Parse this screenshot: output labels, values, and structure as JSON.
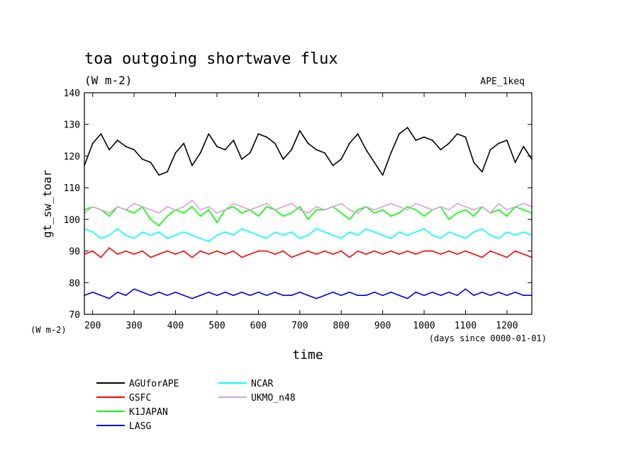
{
  "chart_data": {
    "type": "line",
    "title": "toa outgoing shortwave flux",
    "subtitle": "(W m-2)",
    "tag": "APE_1keq",
    "ylabel": "gt_sw_toar",
    "yunit": "(W m-2)",
    "xlabel": "time",
    "xunit": "(days since 0000-01-01)",
    "xlim": [
      180,
      1260
    ],
    "ylim": [
      70,
      140
    ],
    "xticks": [
      200,
      300,
      400,
      500,
      600,
      700,
      800,
      900,
      1000,
      1100,
      1200
    ],
    "yticks": [
      70,
      80,
      90,
      100,
      110,
      120,
      130,
      140
    ],
    "grid": false,
    "legend_position": "bottom-left",
    "series": [
      {
        "name": "AGUforAPE",
        "color": "#000000",
        "x": [
          180,
          200,
          220,
          240,
          260,
          280,
          300,
          320,
          340,
          360,
          380,
          400,
          420,
          440,
          460,
          480,
          500,
          520,
          540,
          560,
          580,
          600,
          620,
          640,
          660,
          680,
          700,
          720,
          740,
          760,
          780,
          800,
          820,
          840,
          860,
          880,
          900,
          920,
          940,
          960,
          980,
          1000,
          1020,
          1040,
          1060,
          1080,
          1100,
          1120,
          1140,
          1160,
          1180,
          1200,
          1220,
          1240,
          1260
        ],
        "y": [
          117,
          124,
          127,
          122,
          125,
          123,
          122,
          119,
          118,
          114,
          115,
          121,
          124,
          117,
          121,
          127,
          123,
          122,
          125,
          119,
          121,
          127,
          126,
          124,
          119,
          122,
          128,
          124,
          122,
          121,
          117,
          119,
          124,
          127,
          122,
          118,
          114,
          121,
          127,
          129,
          125,
          126,
          125,
          122,
          124,
          127,
          126,
          118,
          115,
          122,
          124,
          125,
          118,
          123,
          119
        ]
      },
      {
        "name": "GSFC",
        "color": "#ff0000",
        "x": [
          180,
          200,
          220,
          240,
          260,
          280,
          300,
          320,
          340,
          360,
          380,
          400,
          420,
          440,
          460,
          480,
          500,
          520,
          540,
          560,
          580,
          600,
          620,
          640,
          660,
          680,
          700,
          720,
          740,
          760,
          780,
          800,
          820,
          840,
          860,
          880,
          900,
          920,
          940,
          960,
          980,
          1000,
          1020,
          1040,
          1060,
          1080,
          1100,
          1120,
          1140,
          1160,
          1180,
          1200,
          1220,
          1240,
          1260
        ],
        "y": [
          89,
          90,
          88,
          91,
          89,
          90,
          89,
          90,
          88,
          89,
          90,
          89,
          90,
          88,
          90,
          89,
          90,
          89,
          90,
          88,
          89,
          90,
          90,
          89,
          90,
          88,
          89,
          90,
          89,
          90,
          89,
          90,
          88,
          90,
          89,
          90,
          89,
          90,
          89,
          90,
          89,
          90,
          90,
          89,
          90,
          89,
          90,
          89,
          88,
          90,
          89,
          88,
          90,
          89,
          88
        ]
      },
      {
        "name": "K1JAPAN",
        "color": "#00ff00",
        "x": [
          180,
          200,
          220,
          240,
          260,
          280,
          300,
          320,
          340,
          360,
          380,
          400,
          420,
          440,
          460,
          480,
          500,
          520,
          540,
          560,
          580,
          600,
          620,
          640,
          660,
          680,
          700,
          720,
          740,
          760,
          780,
          800,
          820,
          840,
          860,
          880,
          900,
          920,
          940,
          960,
          980,
          1000,
          1020,
          1040,
          1060,
          1080,
          1100,
          1120,
          1140,
          1160,
          1180,
          1200,
          1220,
          1240,
          1260
        ],
        "y": [
          103,
          104,
          103,
          101,
          104,
          103,
          102,
          104,
          100,
          98,
          101,
          103,
          102,
          104,
          101,
          103,
          99,
          103,
          104,
          102,
          103,
          101,
          104,
          103,
          101,
          102,
          104,
          100,
          103,
          103,
          104,
          102,
          100,
          103,
          104,
          102,
          103,
          101,
          102,
          104,
          103,
          101,
          103,
          104,
          100,
          102,
          103,
          101,
          104,
          102,
          103,
          101,
          104,
          103,
          102
        ]
      },
      {
        "name": "NCAR",
        "color": "#00ffff",
        "x": [
          180,
          200,
          220,
          240,
          260,
          280,
          300,
          320,
          340,
          360,
          380,
          400,
          420,
          440,
          460,
          480,
          500,
          520,
          540,
          560,
          580,
          600,
          620,
          640,
          660,
          680,
          700,
          720,
          740,
          760,
          780,
          800,
          820,
          840,
          860,
          880,
          900,
          920,
          940,
          960,
          980,
          1000,
          1020,
          1040,
          1060,
          1080,
          1100,
          1120,
          1140,
          1160,
          1180,
          1200,
          1220,
          1240,
          1260
        ],
        "y": [
          97,
          96,
          94,
          95,
          97,
          95,
          94,
          96,
          95,
          96,
          94,
          95,
          96,
          95,
          94,
          93,
          95,
          96,
          95,
          97,
          96,
          95,
          94,
          96,
          95,
          96,
          94,
          95,
          97,
          96,
          95,
          94,
          96,
          95,
          97,
          96,
          95,
          94,
          96,
          95,
          96,
          97,
          95,
          94,
          96,
          95,
          94,
          96,
          97,
          95,
          94,
          96,
          95,
          96,
          95
        ]
      },
      {
        "name": "UKMO_n48",
        "color": "#d8a0d8",
        "x": [
          180,
          200,
          220,
          240,
          260,
          280,
          300,
          320,
          340,
          360,
          380,
          400,
          420,
          440,
          460,
          480,
          500,
          520,
          540,
          560,
          580,
          600,
          620,
          640,
          660,
          680,
          700,
          720,
          740,
          760,
          780,
          800,
          820,
          840,
          860,
          880,
          900,
          920,
          940,
          960,
          980,
          1000,
          1020,
          1040,
          1060,
          1080,
          1100,
          1120,
          1140,
          1160,
          1180,
          1200,
          1220,
          1240,
          1260
        ],
        "y": [
          102,
          104,
          103,
          102,
          104,
          103,
          105,
          104,
          103,
          102,
          104,
          103,
          104,
          106,
          103,
          104,
          102,
          103,
          105,
          104,
          103,
          104,
          105,
          103,
          104,
          105,
          103,
          102,
          104,
          103,
          104,
          105,
          103,
          102,
          104,
          103,
          104,
          105,
          104,
          103,
          105,
          104,
          103,
          104,
          103,
          105,
          104,
          103,
          104,
          102,
          105,
          103,
          104,
          105,
          104
        ]
      },
      {
        "name": "LASG",
        "color": "#0000dd",
        "x": [
          180,
          200,
          220,
          240,
          260,
          280,
          300,
          320,
          340,
          360,
          380,
          400,
          420,
          440,
          460,
          480,
          500,
          520,
          540,
          560,
          580,
          600,
          620,
          640,
          660,
          680,
          700,
          720,
          740,
          760,
          780,
          800,
          820,
          840,
          860,
          880,
          900,
          920,
          940,
          960,
          980,
          1000,
          1020,
          1040,
          1060,
          1080,
          1100,
          1120,
          1140,
          1160,
          1180,
          1200,
          1220,
          1240,
          1260
        ],
        "y": [
          76,
          77,
          76,
          75,
          77,
          76,
          78,
          77,
          76,
          77,
          76,
          77,
          76,
          75,
          76,
          77,
          76,
          77,
          76,
          77,
          76,
          77,
          76,
          77,
          76,
          76,
          77,
          76,
          75,
          76,
          77,
          76,
          77,
          76,
          76,
          77,
          76,
          77,
          76,
          75,
          77,
          76,
          77,
          76,
          77,
          76,
          78,
          76,
          77,
          76,
          77,
          76,
          77,
          76,
          76
        ]
      }
    ]
  }
}
